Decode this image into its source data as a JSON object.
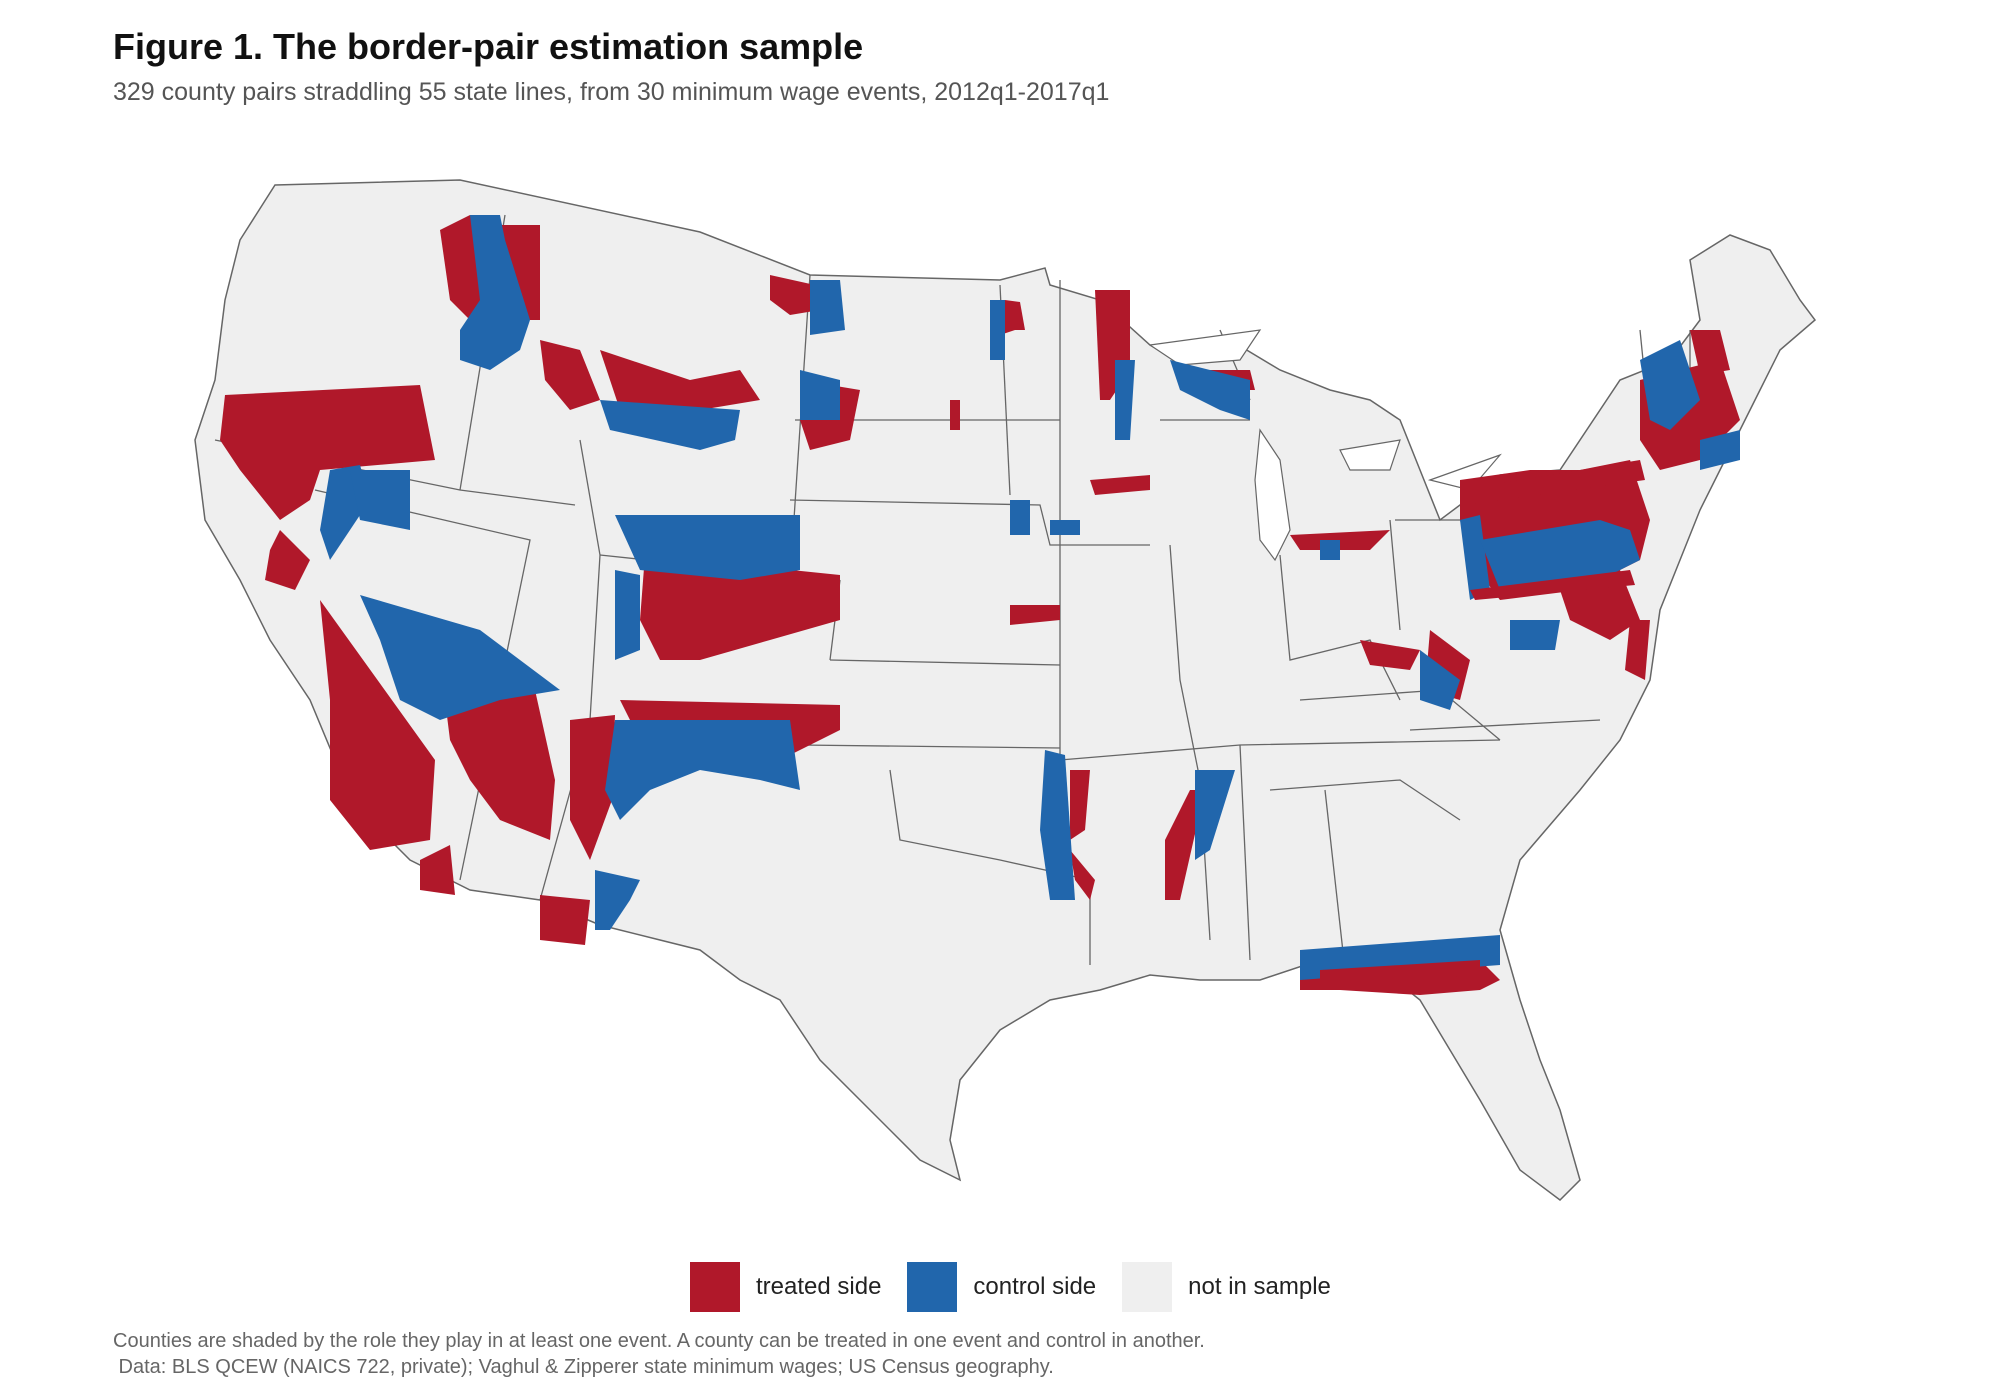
{
  "header": {
    "title": "Figure 1. The border-pair estimation sample",
    "subtitle": "329 county pairs straddling 55 state lines, from 30 minimum wage events, 2012q1-2017q1"
  },
  "legend": {
    "items": [
      {
        "label": "treated side",
        "color": "#b0182a"
      },
      {
        "label": "control side",
        "color": "#2166ac"
      },
      {
        "label": "not in sample",
        "color": "#efefef"
      }
    ]
  },
  "colors": {
    "treated": "#b0182a",
    "control": "#2166ac",
    "background_county": "#efefef",
    "state_border": "#666666"
  },
  "caption": {
    "line1": "Counties are shaded by the role they play in at least one event. A county can be treated in one event and control in another.",
    "line2": " Data: BLS QCEW (NAICS 722, private); Vaghul & Zipperer state minimum wages; US Census geography."
  }
}
